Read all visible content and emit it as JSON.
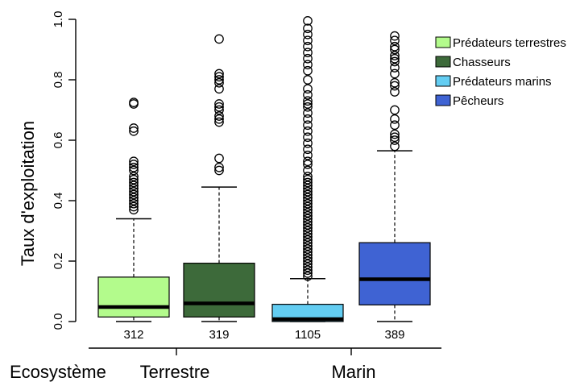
{
  "chart_data": {
    "type": "box",
    "ylabel": "Taux d'exploitation",
    "ylim": [
      0,
      1.0
    ],
    "yticks": [
      "0.0",
      "0.2",
      "0.4",
      "0.6",
      "0.8",
      "1.0"
    ],
    "ytick_values": [
      0,
      0.2,
      0.4,
      0.6,
      0.8,
      1.0
    ],
    "ecosystem_label": "Ecosystème",
    "groups": [
      {
        "label": "Terrestre",
        "boxes": [
          0,
          1
        ]
      },
      {
        "label": "Marin",
        "boxes": [
          2,
          3
        ]
      }
    ],
    "legend_position": "top-right",
    "series": [
      {
        "name": "Prédateurs terrestres",
        "color": "#b3fb8c",
        "n": "312",
        "min": 0.0,
        "q1": 0.015,
        "median": 0.048,
        "q3": 0.147,
        "max": 0.34,
        "outliers": [
          0.37,
          0.38,
          0.39,
          0.4,
          0.41,
          0.42,
          0.43,
          0.44,
          0.45,
          0.46,
          0.47,
          0.48,
          0.5,
          0.51,
          0.52,
          0.53,
          0.63,
          0.64,
          0.72,
          0.725
        ]
      },
      {
        "name": "Chasseurs",
        "color": "#3d6a3a",
        "n": "319",
        "min": 0.0,
        "q1": 0.015,
        "median": 0.06,
        "q3": 0.193,
        "max": 0.445,
        "outliers": [
          0.5,
          0.51,
          0.54,
          0.66,
          0.67,
          0.68,
          0.7,
          0.71,
          0.72,
          0.77,
          0.79,
          0.8,
          0.81,
          0.82,
          0.935
        ]
      },
      {
        "name": "Prédateurs marins",
        "color": "#63cdf2",
        "n": "1105",
        "min": 0.0,
        "q1": 0.0,
        "median": 0.008,
        "q3": 0.057,
        "max": 0.142,
        "outliers": [
          0.15,
          0.16,
          0.17,
          0.18,
          0.19,
          0.2,
          0.21,
          0.22,
          0.23,
          0.24,
          0.25,
          0.26,
          0.27,
          0.28,
          0.29,
          0.3,
          0.31,
          0.32,
          0.33,
          0.34,
          0.35,
          0.36,
          0.37,
          0.38,
          0.39,
          0.4,
          0.41,
          0.42,
          0.43,
          0.44,
          0.45,
          0.46,
          0.47,
          0.48,
          0.5,
          0.52,
          0.53,
          0.55,
          0.57,
          0.59,
          0.61,
          0.63,
          0.65,
          0.67,
          0.69,
          0.71,
          0.72,
          0.73,
          0.75,
          0.77,
          0.8,
          0.83,
          0.85,
          0.87,
          0.89,
          0.91,
          0.93,
          0.95,
          0.97,
          0.995
        ]
      },
      {
        "name": "Pêcheurs",
        "color": "#3f63d3",
        "n": "389",
        "min": 0.0,
        "q1": 0.055,
        "median": 0.14,
        "q3": 0.261,
        "max": 0.565,
        "outliers": [
          0.58,
          0.6,
          0.61,
          0.62,
          0.65,
          0.67,
          0.7,
          0.76,
          0.78,
          0.79,
          0.82,
          0.84,
          0.86,
          0.87,
          0.88,
          0.9,
          0.91,
          0.93,
          0.945
        ]
      }
    ]
  }
}
